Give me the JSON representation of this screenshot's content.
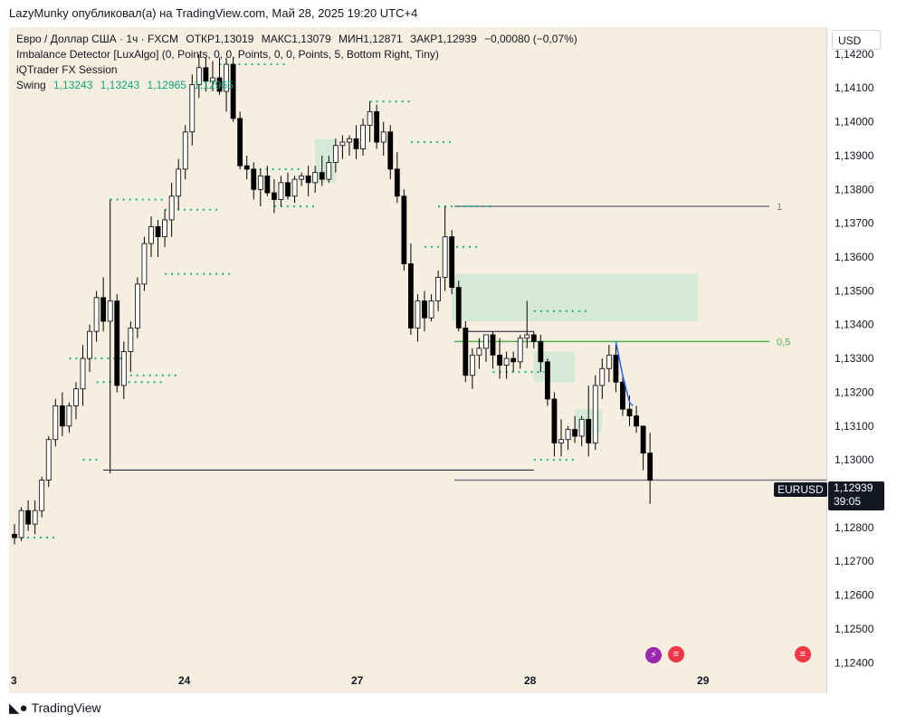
{
  "publisher_line": "LazyMunky опубликовал(а) на TradingView.com, Май 28, 2025 19:20 UTC+4",
  "legend": {
    "main": {
      "symbol": "Евро / Доллар США · 1ч · FXCM",
      "open": "ОТКР1,13019",
      "high": "МАКС1,13079",
      "low": "МИН1,12871",
      "close": "ЗАКР1,12939",
      "change": "−0,00080 (−0,07%)"
    },
    "indicator1": "Imbalance Detector [LuxAlgo] (0, Points, 0, 0, Points, 0, 0, Points, 5, Bottom Right, Tiny)",
    "indicator2": "iQTrader FX Session",
    "swing": {
      "label": "Swing",
      "values": [
        "1,13243",
        "1,13243",
        "1,12965",
        "1,12965"
      ]
    }
  },
  "currency_button": "USD",
  "price_tag": {
    "symbol": "EURUSD",
    "price": "1,12939",
    "countdown": "39:05"
  },
  "fib_labels": {
    "level_1": "1",
    "level_half": "0,5"
  },
  "footer_brand": "TradingView",
  "colors": {
    "background": "#f6efe1",
    "candle_up": "#ffffff",
    "candle_down": "#000000",
    "dots": "#14b386",
    "fvg_zone": "#cfe8d4",
    "fib_half": "#4caf50",
    "fib_one": "#787b86",
    "blue_line": "#2962ff"
  },
  "chart_data": {
    "type": "candlestick",
    "symbol": "EURUSD",
    "y_ticks": [
      "1,14200",
      "1,14100",
      "1,14000",
      "1,13900",
      "1,13800",
      "1,13700",
      "1,13600",
      "1,13500",
      "1,13400",
      "1,13300",
      "1,13200",
      "1,13100",
      "1,13000",
      "1,12900",
      "1,12800",
      "1,12700",
      "1,12600",
      "1,12500",
      "1,12400"
    ],
    "ylim": [
      1.1239,
      1.1428
    ],
    "x_ticks": [
      "3",
      "24",
      "27",
      "28",
      "29"
    ],
    "candles": [
      [
        1.1278,
        1.1281,
        1.1275,
        1.1277
      ],
      [
        1.1277,
        1.1286,
        1.1276,
        1.1285
      ],
      [
        1.1285,
        1.1288,
        1.1279,
        1.1281
      ],
      [
        1.1281,
        1.1288,
        1.1278,
        1.1285
      ],
      [
        1.1285,
        1.1295,
        1.1283,
        1.1294
      ],
      [
        1.1294,
        1.1307,
        1.1292,
        1.1306
      ],
      [
        1.1306,
        1.1318,
        1.1304,
        1.1316
      ],
      [
        1.1316,
        1.132,
        1.1307,
        1.131
      ],
      [
        1.131,
        1.1317,
        1.1308,
        1.1316
      ],
      [
        1.1316,
        1.1323,
        1.1312,
        1.1321
      ],
      [
        1.1321,
        1.1334,
        1.1316,
        1.133
      ],
      [
        1.133,
        1.134,
        1.1326,
        1.1338
      ],
      [
        1.1338,
        1.135,
        1.1335,
        1.1348
      ],
      [
        1.1348,
        1.1354,
        1.1338,
        1.1341
      ],
      [
        1.1341,
        1.1377,
        1.1296,
        1.1347
      ],
      [
        1.1347,
        1.1349,
        1.132,
        1.1322
      ],
      [
        1.1322,
        1.1335,
        1.1318,
        1.1332
      ],
      [
        1.1332,
        1.1341,
        1.1326,
        1.1339
      ],
      [
        1.1339,
        1.1354,
        1.1336,
        1.1352
      ],
      [
        1.1352,
        1.1366,
        1.135,
        1.1364
      ],
      [
        1.1364,
        1.1372,
        1.136,
        1.1369
      ],
      [
        1.1369,
        1.1371,
        1.136,
        1.1366
      ],
      [
        1.1366,
        1.1374,
        1.1363,
        1.1371
      ],
      [
        1.1371,
        1.1382,
        1.1366,
        1.1378
      ],
      [
        1.1378,
        1.1389,
        1.1374,
        1.1386
      ],
      [
        1.1386,
        1.1399,
        1.1383,
        1.1397
      ],
      [
        1.1397,
        1.1414,
        1.1393,
        1.1411
      ],
      [
        1.1411,
        1.142,
        1.1407,
        1.1416
      ],
      [
        1.1416,
        1.1419,
        1.1409,
        1.1412
      ],
      [
        1.1412,
        1.1418,
        1.1409,
        1.1413
      ],
      [
        1.1413,
        1.1419,
        1.1408,
        1.1409
      ],
      [
        1.1409,
        1.1419,
        1.1403,
        1.1417
      ],
      [
        1.1417,
        1.1419,
        1.14,
        1.1401
      ],
      [
        1.1401,
        1.1403,
        1.1386,
        1.1387
      ],
      [
        1.1387,
        1.139,
        1.1383,
        1.1386
      ],
      [
        1.1386,
        1.1388,
        1.1377,
        1.138
      ],
      [
        1.138,
        1.1386,
        1.1375,
        1.1384
      ],
      [
        1.1384,
        1.1387,
        1.1378,
        1.1379
      ],
      [
        1.1379,
        1.1383,
        1.1373,
        1.1377
      ],
      [
        1.1377,
        1.1384,
        1.1375,
        1.1382
      ],
      [
        1.1382,
        1.1385,
        1.1377,
        1.1378
      ],
      [
        1.1378,
        1.1384,
        1.1376,
        1.1383
      ],
      [
        1.1383,
        1.1385,
        1.1381,
        1.1384
      ],
      [
        1.1384,
        1.1387,
        1.1378,
        1.1382
      ],
      [
        1.1382,
        1.1387,
        1.1379,
        1.1385
      ],
      [
        1.1385,
        1.139,
        1.1381,
        1.1383
      ],
      [
        1.1383,
        1.139,
        1.1382,
        1.1388
      ],
      [
        1.1388,
        1.1395,
        1.1385,
        1.1393
      ],
      [
        1.1393,
        1.1396,
        1.1389,
        1.1394
      ],
      [
        1.1394,
        1.1396,
        1.139,
        1.1395
      ],
      [
        1.1395,
        1.1399,
        1.1389,
        1.1392
      ],
      [
        1.1392,
        1.1401,
        1.139,
        1.1399
      ],
      [
        1.1399,
        1.1406,
        1.1394,
        1.1403
      ],
      [
        1.1403,
        1.1405,
        1.1392,
        1.1394
      ],
      [
        1.1394,
        1.14,
        1.139,
        1.1397
      ],
      [
        1.1397,
        1.1399,
        1.1383,
        1.1386
      ],
      [
        1.1386,
        1.1391,
        1.1376,
        1.1378
      ],
      [
        1.1378,
        1.138,
        1.1356,
        1.1358
      ],
      [
        1.1358,
        1.1364,
        1.1337,
        1.1339
      ],
      [
        1.1339,
        1.1349,
        1.1335,
        1.1347
      ],
      [
        1.1347,
        1.135,
        1.1338,
        1.1342
      ],
      [
        1.1342,
        1.1349,
        1.1341,
        1.1347
      ],
      [
        1.1347,
        1.1356,
        1.1344,
        1.1354
      ],
      [
        1.1354,
        1.1375,
        1.135,
        1.1366
      ],
      [
        1.1366,
        1.1368,
        1.1349,
        1.1351
      ],
      [
        1.1351,
        1.1353,
        1.1338,
        1.1339
      ],
      [
        1.1339,
        1.1341,
        1.1323,
        1.1325
      ],
      [
        1.1325,
        1.1333,
        1.1321,
        1.1331
      ],
      [
        1.1331,
        1.1336,
        1.1327,
        1.1333
      ],
      [
        1.1333,
        1.1337,
        1.1329,
        1.1337
      ],
      [
        1.1337,
        1.1338,
        1.1327,
        1.1331
      ],
      [
        1.1331,
        1.1336,
        1.1324,
        1.1328
      ],
      [
        1.1328,
        1.1332,
        1.1324,
        1.133
      ],
      [
        1.133,
        1.1332,
        1.1326,
        1.1329
      ],
      [
        1.1329,
        1.1337,
        1.1327,
        1.1336
      ],
      [
        1.1336,
        1.1347,
        1.1333,
        1.1337
      ],
      [
        1.1337,
        1.1338,
        1.1333,
        1.1335
      ],
      [
        1.1335,
        1.1337,
        1.1326,
        1.1329
      ],
      [
        1.1329,
        1.133,
        1.1316,
        1.1318
      ],
      [
        1.1318,
        1.132,
        1.1301,
        1.1305
      ],
      [
        1.1305,
        1.1312,
        1.1301,
        1.1306
      ],
      [
        1.1306,
        1.131,
        1.1303,
        1.1309
      ],
      [
        1.1309,
        1.1313,
        1.1305,
        1.1307
      ],
      [
        1.1307,
        1.1313,
        1.1304,
        1.1312
      ],
      [
        1.1312,
        1.1322,
        1.1301,
        1.1305
      ],
      [
        1.1305,
        1.1325,
        1.1303,
        1.1322
      ],
      [
        1.1322,
        1.133,
        1.1318,
        1.1327
      ],
      [
        1.1327,
        1.1334,
        1.1323,
        1.1331
      ],
      [
        1.1331,
        1.1334,
        1.132,
        1.1323
      ],
      [
        1.1323,
        1.1325,
        1.1313,
        1.1315
      ],
      [
        1.1315,
        1.1319,
        1.131,
        1.1313
      ],
      [
        1.1313,
        1.1316,
        1.1308,
        1.131
      ],
      [
        1.131,
        1.131,
        1.1297,
        1.1302
      ],
      [
        1.1302,
        1.1308,
        1.1287,
        1.1294
      ]
    ],
    "swing_dots": [
      [
        1.1277,
        0,
        6
      ],
      [
        1.13,
        10,
        12
      ],
      [
        1.1323,
        12,
        22
      ],
      [
        1.1325,
        16,
        24
      ],
      [
        1.133,
        8,
        16
      ],
      [
        1.1377,
        14,
        22
      ],
      [
        1.1374,
        22,
        30
      ],
      [
        1.1355,
        22,
        32
      ],
      [
        1.1417,
        30,
        40
      ],
      [
        1.1386,
        34,
        42
      ],
      [
        1.1375,
        38,
        44
      ],
      [
        1.1406,
        52,
        58
      ],
      [
        1.1394,
        58,
        64
      ],
      [
        1.1375,
        62,
        70
      ],
      [
        1.1363,
        60,
        68
      ],
      [
        1.1344,
        76,
        84
      ],
      [
        1.1326,
        70,
        78
      ],
      [
        1.13,
        76,
        82
      ]
    ],
    "fvg_zones": [
      [
        1.1355,
        1.1341,
        64,
        100
      ],
      [
        1.1332,
        1.1323,
        76,
        82
      ],
      [
        1.1315,
        1.1308,
        82,
        86
      ],
      [
        1.1395,
        1.1382,
        44,
        47
      ]
    ],
    "fib_levels": {
      "one": 1.1375,
      "half": 1.1335,
      "low": 1.1294
    },
    "range_lines": [
      [
        1.1297,
        13,
        76
      ],
      [
        1.1338,
        66,
        76
      ]
    ],
    "last_price": 1.12939
  }
}
